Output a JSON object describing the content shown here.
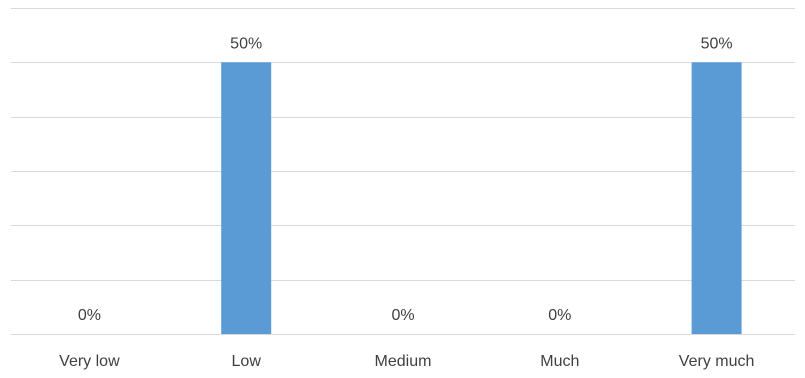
{
  "chart_data": {
    "type": "bar",
    "categories": [
      "Very low",
      "Low",
      "Medium",
      "Much",
      "Very much"
    ],
    "values": [
      0,
      50,
      0,
      0,
      50
    ],
    "data_labels": [
      "0%",
      "50%",
      "0%",
      "0%",
      "50%"
    ],
    "title": "",
    "xlabel": "",
    "ylabel": "",
    "ylim": [
      0,
      60
    ],
    "grid": true,
    "legend": "none",
    "colors": {
      "bar": "#5b9bd5",
      "grid": "#d9d9d9",
      "text": "#404040"
    }
  }
}
